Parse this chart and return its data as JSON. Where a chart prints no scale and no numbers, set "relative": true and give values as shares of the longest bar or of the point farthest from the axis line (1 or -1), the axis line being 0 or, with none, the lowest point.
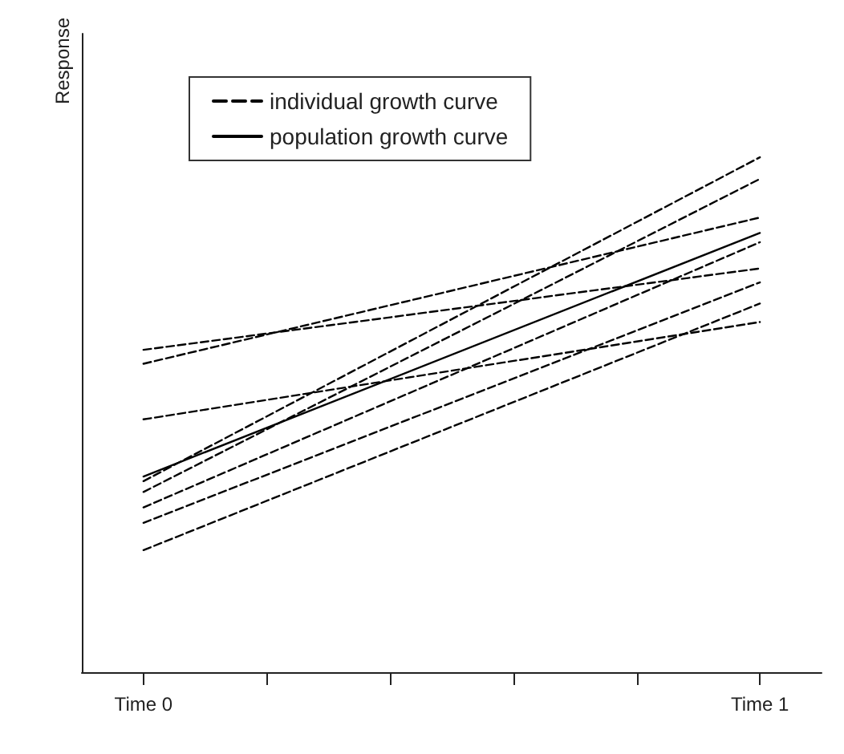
{
  "chart_data": {
    "type": "line",
    "ylabel": "Response",
    "relative": true,
    "categories": [
      "Time 0",
      null,
      null,
      null,
      null,
      "Time 1"
    ],
    "grid": false,
    "legend": "top left",
    "marker": "none",
    "series": [
      {
        "name": "individual growth curve",
        "color": "#000000",
        "line_style": "dashed",
        "values": [
          0.626,
          null,
          null,
          null,
          null,
          0.784
        ]
      },
      {
        "color": "#000000",
        "line_style": "dashed",
        "values": [
          0.599,
          null,
          null,
          null,
          null,
          0.883
        ]
      },
      {
        "color": "#000000",
        "line_style": "dashed",
        "values": [
          0.491,
          null,
          null,
          null,
          null,
          0.68
        ]
      },
      {
        "color": "#000000",
        "line_style": "dashed",
        "values": [
          0.371,
          null,
          null,
          null,
          null,
          1
        ]
      },
      {
        "color": "#000000",
        "line_style": "dashed",
        "values": [
          0.35,
          null,
          null,
          null,
          null,
          0.958
        ]
      },
      {
        "color": "#000000",
        "line_style": "dashed",
        "values": [
          0.32,
          null,
          null,
          null,
          null,
          0.835
        ]
      },
      {
        "color": "#000000",
        "line_style": "dashed",
        "values": [
          0.29,
          null,
          null,
          null,
          null,
          0.757
        ]
      },
      {
        "color": "#000000",
        "line_style": "dashed",
        "values": [
          0.237,
          null,
          null,
          null,
          null,
          0.716
        ]
      },
      {
        "name": "population growth curve",
        "color": "#000000",
        "line_style": "solid",
        "values": [
          0.38,
          null,
          null,
          null,
          null,
          0.853
        ]
      }
    ]
  }
}
